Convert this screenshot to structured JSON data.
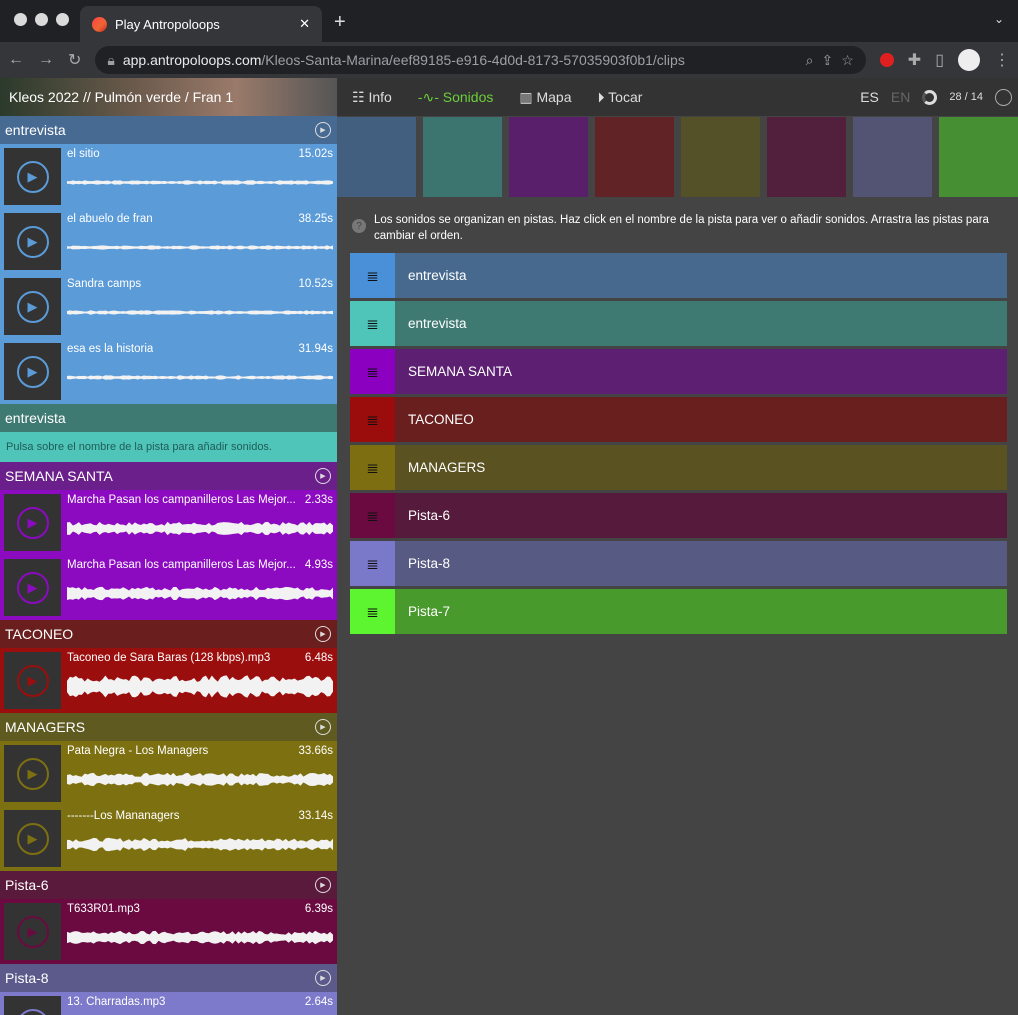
{
  "browser": {
    "tab_title": "Play Antropoloops",
    "url_host": "app.antropoloops.com",
    "url_path": "/Kleos-Santa-Marina/eef89185-e916-4d0d-8173-57035903f0b1/clips"
  },
  "project": {
    "title": "Kleos 2022  //  Pulmón verde / Fran 1"
  },
  "nav": {
    "items": [
      "Info",
      "Sonidos",
      "Mapa",
      "Tocar"
    ],
    "active": "Sonidos",
    "lang_es": "ES",
    "lang_en": "EN",
    "counter": "28 / 14",
    "accent": "#6bcf3a"
  },
  "help": "Los sonidos se organizan en pistas. Haz click en el nombre de la pista para ver o añadir sonidos. Arrastra las pistas para cambiar el orden.",
  "sidebar": {
    "tracks": [
      {
        "name": "entrevista",
        "head": "#476a93",
        "bg": "#5b9bd8",
        "clips": [
          {
            "name": "el sitio",
            "dur": "15.02s"
          },
          {
            "name": "el abuelo de fran",
            "dur": "38.25s"
          },
          {
            "name": "Sandra camps",
            "dur": "10.52s"
          },
          {
            "name": "esa es la historia",
            "dur": "31.94s"
          }
        ]
      },
      {
        "name": "entrevista",
        "head": "#3f7a72",
        "bg": "#4fc4b8",
        "clips": [],
        "message": "Pulsa sobre el nombre de la pista para añadir sonidos."
      },
      {
        "name": "SEMANA SANTA",
        "head": "#6a1f8a",
        "bg": "#8c0ac0",
        "clips": [
          {
            "name": "Marcha Pasan los campanilleros Las Mejor...",
            "dur": "2.33s"
          },
          {
            "name": "Marcha Pasan los campanilleros Las Mejor...",
            "dur": "4.93s"
          }
        ]
      },
      {
        "name": "TACONEO",
        "head": "#6b1e1e",
        "bg": "#9a0e0e",
        "clips": [
          {
            "name": "Taconeo de Sara Baras (128 kbps).mp3",
            "dur": "6.48s"
          }
        ]
      },
      {
        "name": "MANAGERS",
        "head": "#5e5a20",
        "bg": "#7d7010",
        "clips": [
          {
            "name": "Pata Negra - Los Managers",
            "dur": "33.66s"
          },
          {
            "name": "-------Los Mananagers",
            "dur": "33.14s"
          }
        ]
      },
      {
        "name": "Pista-6",
        "head": "#5a1a3c",
        "bg": "#6a0a40",
        "clips": [
          {
            "name": "T633R01.mp3",
            "dur": "6.39s"
          }
        ]
      },
      {
        "name": "Pista-8",
        "head": "#5b5a8a",
        "bg": "#7d7acb",
        "clips": [
          {
            "name": "13. Charradas.mp3",
            "dur": "2.64s"
          }
        ]
      }
    ]
  },
  "swatches": [
    "#435f80",
    "#3c7570",
    "#5a1f6a",
    "#612325",
    "#545027",
    "#521f3d",
    "#535374",
    "#468f33"
  ],
  "track_list": [
    {
      "name": "entrevista",
      "handle": "#4a90d9",
      "bg": "#47698e"
    },
    {
      "name": "entrevista",
      "handle": "#4fc4b8",
      "bg": "#3f7a72"
    },
    {
      "name": "SEMANA SANTA",
      "handle": "#8b00c0",
      "bg": "#5c1f72"
    },
    {
      "name": "TACONEO",
      "handle": "#9b0d0d",
      "bg": "#6a1f1f"
    },
    {
      "name": "MANAGERS",
      "handle": "#7d6e12",
      "bg": "#5a5220"
    },
    {
      "name": "Pista-6",
      "handle": "#6a0a40",
      "bg": "#561b3c"
    },
    {
      "name": "Pista-8",
      "handle": "#7a78c8",
      "bg": "#575a83"
    },
    {
      "name": "Pista-7",
      "handle": "#5cf52f",
      "bg": "#489a2c"
    }
  ]
}
